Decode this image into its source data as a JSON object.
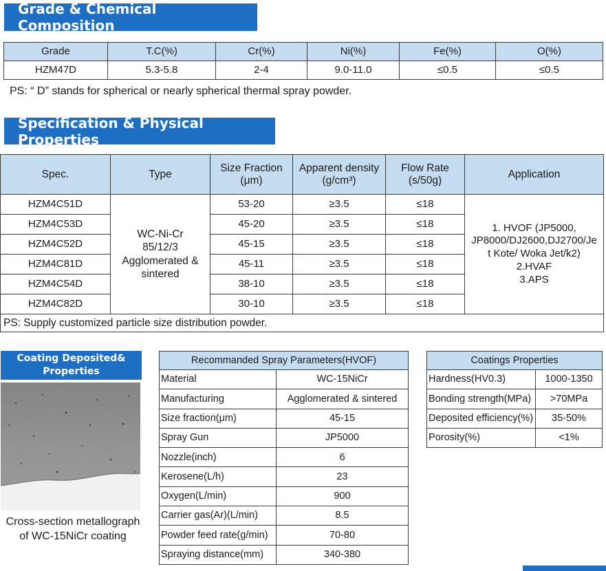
{
  "section1": {
    "title": "Grade & Chemical Composition"
  },
  "composition": {
    "headers": [
      "Grade",
      "T.C(%)",
      "Cr(%)",
      "Ni(%)",
      "Fe(%)",
      "O(%)"
    ],
    "row": [
      "HZM47D",
      "5.3-5.8",
      "2-4",
      "9.0-11.0",
      "≤0.5",
      "≤0.5"
    ],
    "note": "PS: “ D” stands for spherical or nearly spherical thermal spray powder."
  },
  "section2": {
    "title": "Specification & Physical Properties"
  },
  "spec": {
    "headers": {
      "spec": "Spec.",
      "type": "Type",
      "size_l1": "Size Fraction",
      "size_l2": "(μm)",
      "density_l1": "Apparent density",
      "density_l2": "(g/cm³)",
      "flow_l1": "Flow Rate",
      "flow_l2": "(s/50g)",
      "application": "Application"
    },
    "type_lines": [
      "WC-Ni-Cr",
      "85/12/3",
      "Agglomerated &",
      "sintered"
    ],
    "application_lines": [
      "1. HVOF (JP5000,",
      "JP8000/DJ2600,DJ2700/Je",
      "t Kote/ Woka Jet/k2)",
      "2.HVAF",
      "3.APS"
    ],
    "rows": [
      {
        "spec": "HZM4C51D",
        "size": "53-20",
        "density": "≥3.5",
        "flow": "≤18"
      },
      {
        "spec": "HZM4C53D",
        "size": "45-20",
        "density": "≥3.5",
        "flow": "≤18"
      },
      {
        "spec": "HZM4C52D",
        "size": "45-15",
        "density": "≥3.5",
        "flow": "≤18"
      },
      {
        "spec": "HZM4C81D",
        "size": "45-11",
        "density": "≥3.5",
        "flow": "≤18"
      },
      {
        "spec": "HZM4C54D",
        "size": "38-10",
        "density": "≥3.5",
        "flow": "≤18"
      },
      {
        "spec": "HZM4C82D",
        "size": "30-10",
        "density": "≥3.5",
        "flow": "≤18"
      }
    ],
    "note": "PS: Supply customized particle size distribution powder."
  },
  "coating": {
    "banner_l1": "Coating Deposited&",
    "banner_l2": "Properties",
    "caption_l1": "Cross-section metallograph",
    "caption_l2": "of WC-15NiCr coating"
  },
  "spray": {
    "title": "Recommanded Spray Parameters(HVOF)",
    "rows": [
      {
        "k": "Material",
        "v": "WC-15NiCr"
      },
      {
        "k": "Manufacturing",
        "v": "Agglomerated & sintered"
      },
      {
        "k": "Size fraction(μm)",
        "v": "45-15"
      },
      {
        "k": "Spray Gun",
        "v": "JP5000"
      },
      {
        "k": "Nozzle(inch)",
        "v": "6"
      },
      {
        "k": "Kerosene(L/h)",
        "v": "23"
      },
      {
        "k": "Oxygen(L/min)",
        "v": "900"
      },
      {
        "k": "Carrier gas(Ar)(L/min)",
        "v": "8.5"
      },
      {
        "k": "Powder feed rate(g/min)",
        "v": "70-80"
      },
      {
        "k": "Spraying distance(mm)",
        "v": "340-380"
      }
    ]
  },
  "props": {
    "title": "Coatings Properties",
    "rows": [
      {
        "k": "Hardness(HV0.3)",
        "v": "1000-1350"
      },
      {
        "k": "Bonding strength(MPa)",
        "v": ">70MPa"
      },
      {
        "k": "Deposited efficiency(%)",
        "v": "35-50%"
      },
      {
        "k": "Porosity(%)",
        "v": "<1%"
      }
    ]
  },
  "colors": {
    "accent": "#1e6fc3",
    "header_fill": "#c6dcf0"
  }
}
